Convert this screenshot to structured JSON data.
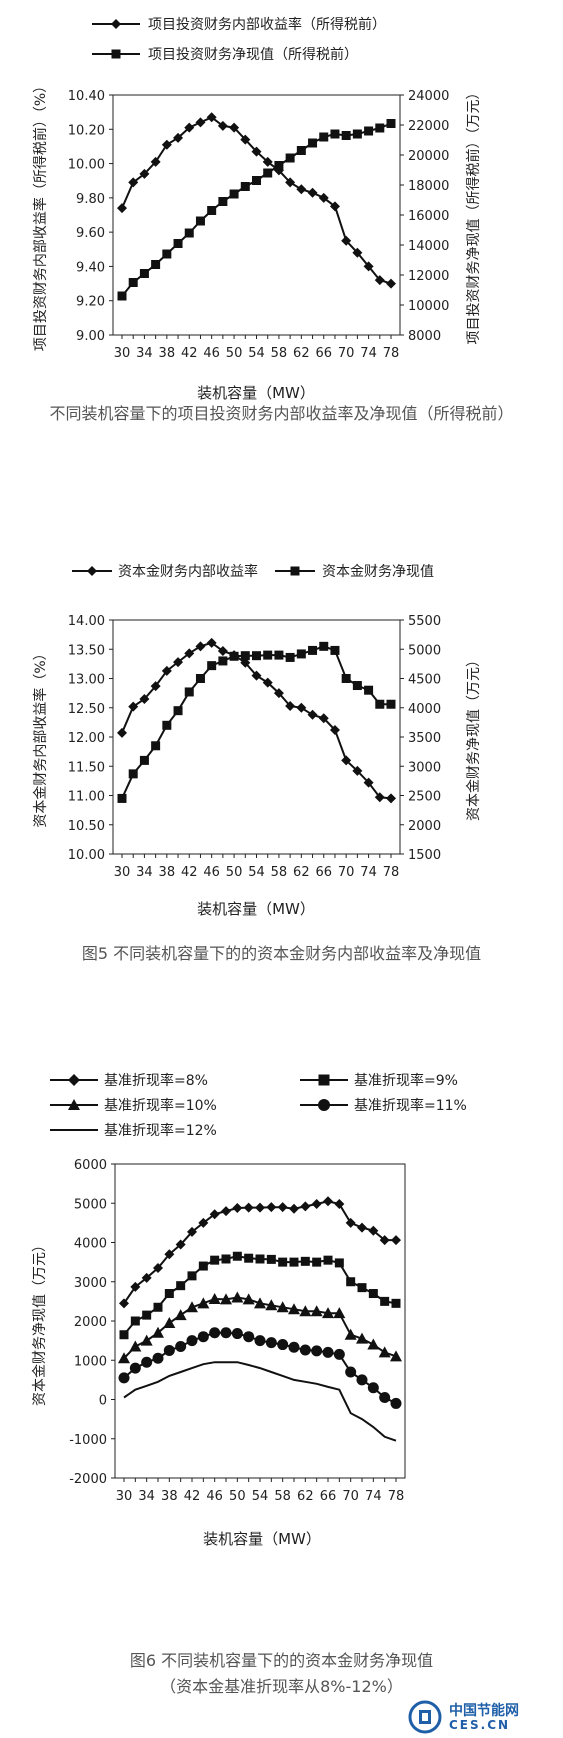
{
  "figures": [
    {
      "caption": "不同装机容量下的项目投资财务内部收益率及净现值（所得税前）",
      "chart_data": {
        "type": "line",
        "x": [
          30,
          32,
          34,
          36,
          38,
          40,
          42,
          44,
          46,
          48,
          50,
          52,
          54,
          56,
          58,
          60,
          62,
          64,
          66,
          68,
          70,
          72,
          74,
          76,
          78
        ],
        "xticks": [
          "30",
          "34",
          "38",
          "42",
          "46",
          "50",
          "54",
          "58",
          "62",
          "66",
          "70",
          "74",
          "78"
        ],
        "xlabel": "装机容量（MW）",
        "ylabel_left": "项目投资财务内部收益率（所得税前）（%）",
        "ylabel_right": "项目投资财务净现值（所得税前）（万元）",
        "ylim_left": [
          9.0,
          10.4
        ],
        "yticks_left": [
          "9.00",
          "9.20",
          "9.40",
          "9.60",
          "9.80",
          "10.00",
          "10.20",
          "10.40"
        ],
        "ylim_right": [
          8000,
          24000
        ],
        "yticks_right": [
          "8000",
          "10000",
          "12000",
          "14000",
          "16000",
          "18000",
          "20000",
          "22000",
          "24000"
        ],
        "grid": false,
        "legend": "top",
        "series": [
          {
            "name": "项目投资财务内部收益率（所得税前）",
            "axis": "left",
            "marker": "diamond",
            "values": [
              9.74,
              9.89,
              9.94,
              10.01,
              10.11,
              10.15,
              10.21,
              10.24,
              10.27,
              10.22,
              10.21,
              10.14,
              10.07,
              10.01,
              9.96,
              9.89,
              9.85,
              9.83,
              9.8,
              9.75,
              9.55,
              9.48,
              9.4,
              9.32,
              9.3
            ]
          },
          {
            "name": "项目投资财务净现值（所得税前）",
            "axis": "right",
            "marker": "square",
            "values": [
              10600,
              11500,
              12100,
              12700,
              13400,
              14100,
              14800,
              15600,
              16300,
              16900,
              17400,
              17900,
              18300,
              18800,
              19300,
              19800,
              20300,
              20800,
              21200,
              21400,
              21300,
              21400,
              21600,
              21800,
              22100
            ]
          }
        ]
      }
    },
    {
      "caption": "图5 不同装机容量下的的资本金财务内部收益率及净现值",
      "chart_data": {
        "type": "line",
        "x": [
          30,
          32,
          34,
          36,
          38,
          40,
          42,
          44,
          46,
          48,
          50,
          52,
          54,
          56,
          58,
          60,
          62,
          64,
          66,
          68,
          70,
          72,
          74,
          76,
          78
        ],
        "xticks": [
          "30",
          "34",
          "38",
          "42",
          "46",
          "50",
          "54",
          "58",
          "62",
          "66",
          "70",
          "74",
          "78"
        ],
        "xlabel": "装机容量（MW）",
        "ylabel_left": "资本金财务内部收益率（%）",
        "ylabel_right": "资本金财务净现值（万元）",
        "ylim_left": [
          10.0,
          14.0
        ],
        "yticks_left": [
          "10.00",
          "10.50",
          "11.00",
          "11.50",
          "12.00",
          "12.50",
          "13.00",
          "13.50",
          "14.00"
        ],
        "ylim_right": [
          1500,
          5500
        ],
        "yticks_right": [
          "1500",
          "2000",
          "2500",
          "3000",
          "3500",
          "4000",
          "4500",
          "5000",
          "5500"
        ],
        "grid": false,
        "legend": "top",
        "series": [
          {
            "name": "资本金财务内部收益率",
            "axis": "left",
            "marker": "diamond",
            "values": [
              12.07,
              12.52,
              12.65,
              12.87,
              13.13,
              13.28,
              13.43,
              13.55,
              13.61,
              13.47,
              13.4,
              13.27,
              13.05,
              12.93,
              12.75,
              12.53,
              12.5,
              12.38,
              12.32,
              12.12,
              11.6,
              11.42,
              11.22,
              10.97,
              10.95
            ]
          },
          {
            "name": "资本金财务净现值",
            "axis": "right",
            "marker": "square",
            "values": [
              2450,
              2870,
              3100,
              3350,
              3700,
              3950,
              4270,
              4500,
              4720,
              4800,
              4880,
              4890,
              4890,
              4900,
              4900,
              4860,
              4920,
              4980,
              5050,
              4980,
              4500,
              4380,
              4300,
              4060,
              4060
            ]
          }
        ]
      }
    },
    {
      "caption_line1": "图6 不同装机容量下的的资本金财务净现值",
      "caption_line2": "（资本金基准折现率从8%-12%）",
      "chart_data": {
        "type": "line",
        "x": [
          30,
          32,
          34,
          36,
          38,
          40,
          42,
          44,
          46,
          48,
          50,
          52,
          54,
          56,
          58,
          60,
          62,
          64,
          66,
          68,
          70,
          72,
          74,
          76,
          78
        ],
        "xticks": [
          "30",
          "34",
          "38",
          "42",
          "46",
          "50",
          "54",
          "58",
          "62",
          "66",
          "70",
          "74",
          "78"
        ],
        "xlabel": "装机容量（MW）",
        "ylabel": "资本金财务净现值（万元）",
        "ylim": [
          -2000,
          6000
        ],
        "yticks": [
          "-2000",
          "-1000",
          "0",
          "1000",
          "2000",
          "3000",
          "4000",
          "5000",
          "6000"
        ],
        "grid": false,
        "legend": "top",
        "series": [
          {
            "name": "基准折现率=8%",
            "marker": "diamond",
            "values": [
              2450,
              2870,
              3100,
              3350,
              3700,
              3950,
              4270,
              4500,
              4720,
              4800,
              4880,
              4890,
              4890,
              4900,
              4900,
              4860,
              4920,
              4980,
              5050,
              4980,
              4500,
              4380,
              4300,
              4060,
              4060
            ]
          },
          {
            "name": "基准折现率=9%",
            "marker": "square",
            "values": [
              1650,
              2000,
              2150,
              2350,
              2700,
              2900,
              3150,
              3400,
              3550,
              3580,
              3650,
              3600,
              3580,
              3570,
              3500,
              3500,
              3520,
              3500,
              3550,
              3480,
              3000,
              2850,
              2700,
              2500,
              2450
            ]
          },
          {
            "name": "基准折现率=10%",
            "marker": "triangle",
            "values": [
              1050,
              1350,
              1500,
              1700,
              1950,
              2150,
              2350,
              2450,
              2560,
              2550,
              2600,
              2550,
              2450,
              2400,
              2350,
              2300,
              2250,
              2250,
              2200,
              2200,
              1650,
              1550,
              1400,
              1200,
              1100
            ]
          },
          {
            "name": "基准折现率=11%",
            "marker": "circle",
            "values": [
              550,
              800,
              950,
              1050,
              1250,
              1350,
              1500,
              1600,
              1700,
              1700,
              1680,
              1600,
              1500,
              1450,
              1400,
              1330,
              1260,
              1240,
              1200,
              1150,
              700,
              500,
              300,
              50,
              -100
            ]
          },
          {
            "name": "基准折现率=12%",
            "marker": "none",
            "values": [
              50,
              250,
              350,
              450,
              600,
              700,
              800,
              900,
              950,
              950,
              950,
              880,
              800,
              700,
              600,
              500,
              450,
              400,
              320,
              250,
              -350,
              -500,
              -700,
              -950,
              -1050
            ]
          }
        ]
      }
    }
  ],
  "logo": {
    "title": "中国节能网",
    "domain": "CES.CN"
  }
}
